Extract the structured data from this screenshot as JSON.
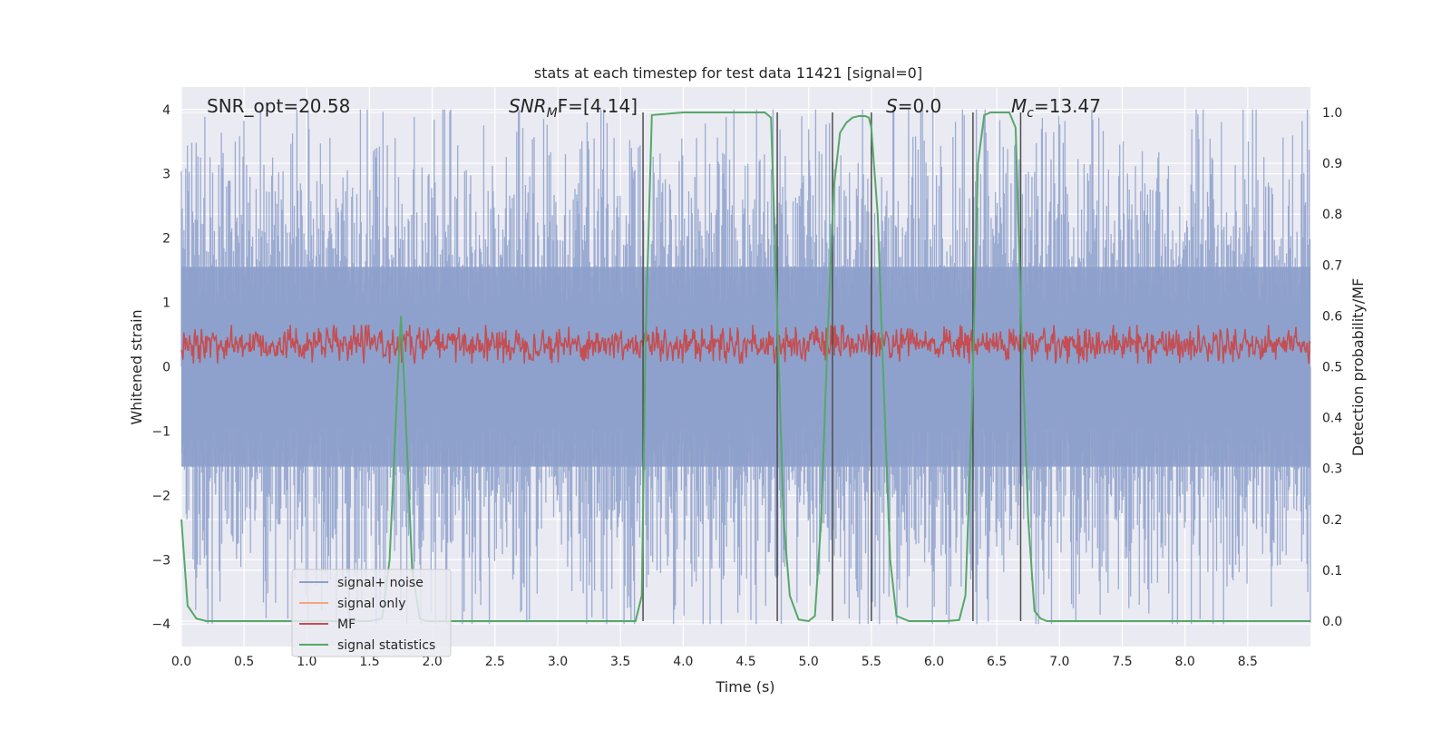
{
  "chart_data": {
    "type": "line",
    "title": "stats at each timestep for test data 11421 [signal=0]",
    "xlabel": "Time (s)",
    "ylabel": "Whitened strain",
    "ylabel_right": "Detection probability/MF",
    "xlim": [
      0,
      9
    ],
    "ylim": [
      -4.35,
      4.35
    ],
    "ylim_right": [
      -0.05,
      1.05
    ],
    "xticks": [
      "0.0",
      "0.5",
      "1.0",
      "1.5",
      "2.0",
      "2.5",
      "3.0",
      "3.5",
      "4.0",
      "4.5",
      "5.0",
      "5.5",
      "6.0",
      "6.5",
      "7.0",
      "7.5",
      "8.0",
      "8.5"
    ],
    "yticks_left": [
      "4",
      "3",
      "2",
      "1",
      "0",
      "−1",
      "−2",
      "−3",
      "−4"
    ],
    "yticks_right": [
      "1.0",
      "0.9",
      "0.8",
      "0.7",
      "0.6",
      "0.5",
      "0.4",
      "0.3",
      "0.2",
      "0.1",
      "0.0"
    ],
    "annotations": {
      "snr_opt": "SNR_opt=20.58",
      "snr_mf_base": "SNR",
      "snr_mf_sub": "M",
      "snr_mf_rest": "F=[4.14]",
      "s_var": "S",
      "s_rest": "=0.0",
      "mc_var": "M",
      "mc_sub": "c",
      "mc_rest": "=13.47"
    },
    "legend": {
      "placement": "lower-left",
      "entries": [
        {
          "label": "signal+ noise",
          "color": "#8da0cb"
        },
        {
          "label": "signal only",
          "color": "#f4a582"
        },
        {
          "label": "MF",
          "color": "#c44e52"
        },
        {
          "label": "signal statistics",
          "color": "#55a868"
        }
      ]
    },
    "colors": {
      "background": "#eaeaf2",
      "grid": "#ffffff",
      "noise": "#8da0cb",
      "mf": "#c44e52",
      "stats": "#55a868",
      "vlines": "#4d4d4d"
    },
    "noise_envelope": {
      "typical_abs": 1.6,
      "max_abs": 4.0
    },
    "mf_band": {
      "center": 0.35,
      "half_width": 0.3,
      "axis": "left"
    },
    "vertical_lines_x": [
      3.68,
      4.75,
      5.19,
      5.5,
      6.31,
      6.69
    ],
    "series": [
      {
        "name": "signal statistics",
        "axis": "right",
        "x": [
          0.0,
          0.05,
          0.12,
          0.2,
          0.4,
          1.0,
          1.5,
          1.6,
          1.66,
          1.72,
          1.75,
          1.78,
          1.84,
          1.9,
          1.95,
          2.0,
          2.5,
          3.0,
          3.5,
          3.62,
          3.67,
          3.7,
          3.75,
          4.0,
          4.5,
          4.65,
          4.7,
          4.75,
          4.8,
          4.85,
          4.92,
          5.0,
          5.05,
          5.1,
          5.15,
          5.2,
          5.25,
          5.3,
          5.35,
          5.4,
          5.45,
          5.48,
          5.5,
          5.52,
          5.55,
          5.6,
          5.65,
          5.7,
          5.8,
          5.9,
          6.0,
          6.1,
          6.2,
          6.25,
          6.3,
          6.35,
          6.4,
          6.45,
          6.5,
          6.55,
          6.6,
          6.65,
          6.7,
          6.75,
          6.8,
          6.85,
          6.9,
          7.0,
          8.0,
          9.0
        ],
        "y": [
          0.2,
          0.03,
          0.005,
          0.0,
          0.0,
          0.0,
          0.0,
          0.005,
          0.12,
          0.45,
          0.6,
          0.45,
          0.1,
          0.005,
          0.0,
          0.0,
          0.0,
          0.0,
          0.0,
          0.0,
          0.05,
          0.55,
          0.995,
          1.0,
          1.0,
          1.0,
          0.99,
          0.6,
          0.2,
          0.05,
          0.003,
          0.0,
          0.01,
          0.2,
          0.55,
          0.85,
          0.96,
          0.98,
          0.99,
          0.993,
          0.993,
          0.99,
          0.97,
          0.9,
          0.8,
          0.45,
          0.12,
          0.01,
          0.0,
          0.0,
          0.0,
          0.0,
          0.002,
          0.05,
          0.4,
          0.9,
          0.995,
          1.0,
          1.0,
          1.0,
          1.0,
          0.97,
          0.55,
          0.2,
          0.02,
          0.005,
          0.0,
          0.0,
          0.0,
          0.0
        ]
      }
    ]
  }
}
